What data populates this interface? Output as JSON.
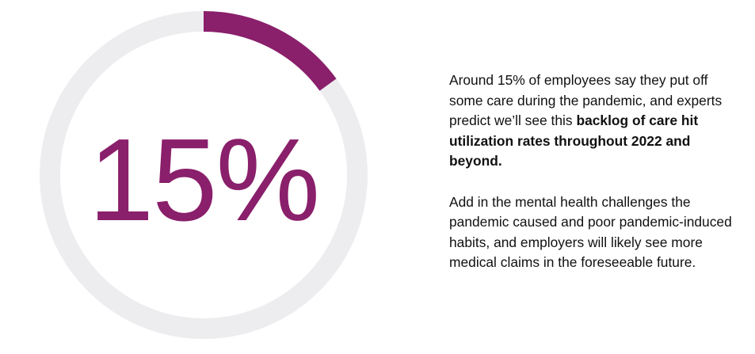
{
  "chart_data": {
    "type": "donut",
    "value": 15,
    "max": 100,
    "label": "15%",
    "colors": {
      "filled": "#8a1f6b",
      "track": "#ededf0",
      "text": "#8a1f6b"
    }
  },
  "body": {
    "paragraph1": {
      "lead": "Around 15% of employees say they put off some care during the pandemic, and experts predict we’ll see this ",
      "emphasis": "backlog of care hit utilization rates throughout 2022 and beyond."
    },
    "paragraph2": "Add in the mental health challenges the pandemic caused and poor pandemic-induced habits, and employers will likely see more medical claims in the foreseeable future."
  }
}
